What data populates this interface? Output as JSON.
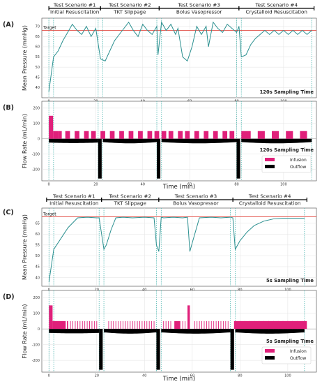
{
  "chart_data": [
    {
      "panel": "(A)",
      "type": "line",
      "scenarios": [
        {
          "title": "Test Scenario #1",
          "subtitle": "Initial Resuscitation",
          "start": 0,
          "end": 22
        },
        {
          "title": "Test Scenario #2",
          "subtitle": "TKT Slippage",
          "start": 22,
          "end": 47
        },
        {
          "title": "Test Scenario #3",
          "subtitle": "Bolus Vasopressor",
          "start": 47,
          "end": 81
        },
        {
          "title": "Test Scenario #4",
          "subtitle": "Crystalloid Resuscitation",
          "start": 81,
          "end": 113
        }
      ],
      "vlines": [
        0,
        2,
        21,
        23,
        46,
        48,
        80,
        82,
        112
      ],
      "xlim": [
        -3,
        114
      ],
      "ylim": [
        35,
        74
      ],
      "yticks": [
        40,
        45,
        50,
        55,
        60,
        65,
        70
      ],
      "xticks": [
        0,
        20,
        40,
        60,
        80,
        100
      ],
      "ylabel": "Mean Pressure (mmHg)",
      "target": {
        "label": "Target",
        "value": 68
      },
      "annotation": "120s Sampling Time",
      "series": [
        {
          "x": [
            0,
            2,
            4,
            6,
            8,
            10,
            12,
            14,
            16,
            18,
            20,
            22,
            24,
            26,
            28,
            30,
            32,
            34,
            36,
            38,
            40,
            42,
            44,
            46,
            46.5,
            48,
            50,
            52,
            54,
            55,
            57,
            59,
            61,
            63,
            65,
            67,
            68,
            70,
            72,
            74,
            76,
            78,
            80,
            81,
            82,
            84,
            86,
            88,
            90,
            92,
            94,
            96,
            98,
            100,
            102,
            104,
            106,
            108,
            110,
            112
          ],
          "y": [
            38,
            55,
            58,
            63,
            67,
            71,
            68,
            66,
            70,
            65,
            69,
            54,
            53,
            58,
            63,
            66,
            69,
            72,
            68,
            65,
            71,
            68,
            66,
            70,
            56,
            72,
            68,
            71,
            66,
            69,
            55,
            53,
            60,
            70,
            66,
            70,
            60,
            72,
            69,
            67,
            71,
            69,
            67,
            70,
            55,
            56,
            61,
            64,
            66,
            68,
            66,
            68,
            66,
            68,
            66,
            68,
            66,
            68,
            66,
            68
          ]
        }
      ]
    },
    {
      "panel": "(B)",
      "type": "bar",
      "vlines": [
        0,
        2,
        21,
        23,
        46,
        48,
        80,
        82,
        112
      ],
      "xlim": [
        -3,
        114
      ],
      "ylim": [
        -275,
        245
      ],
      "yticks": [
        -200,
        -100,
        0,
        100,
        200
      ],
      "xticks": [
        0,
        20,
        40,
        60,
        80,
        100
      ],
      "ylabel": "Flow Rate (mL/min)",
      "xlabel": "Time (min)",
      "annotation": "120s Sampling Time",
      "legend": [
        "Infusion",
        "Outflow"
      ],
      "infusion": [
        [
          0,
          1.8,
          150
        ],
        [
          1.8,
          4,
          50
        ],
        [
          4,
          5.5,
          50
        ],
        [
          7,
          9,
          50
        ],
        [
          11,
          13,
          50
        ],
        [
          15,
          17,
          50
        ],
        [
          18,
          20,
          50
        ],
        [
          22,
          24,
          50
        ],
        [
          26,
          28,
          50
        ],
        [
          30,
          32,
          50
        ],
        [
          34,
          36,
          50
        ],
        [
          38,
          40,
          50
        ],
        [
          42,
          44,
          50
        ],
        [
          45,
          47,
          50
        ],
        [
          48,
          50,
          50
        ],
        [
          51,
          53,
          50
        ],
        [
          55,
          57,
          50
        ],
        [
          58,
          60,
          50
        ],
        [
          62,
          64,
          50
        ],
        [
          66,
          68,
          50
        ],
        [
          70,
          72,
          50
        ],
        [
          74,
          76,
          50
        ],
        [
          77,
          79,
          50
        ],
        [
          82,
          86,
          50
        ],
        [
          89,
          92,
          50
        ],
        [
          95,
          98,
          50
        ],
        [
          101,
          104,
          50
        ],
        [
          107,
          110,
          50
        ]
      ],
      "outflow_segments": [
        {
          "start": 0,
          "end": 21,
          "base": 25,
          "peak": 28
        },
        {
          "start": 21,
          "end": 22.5,
          "base": 260,
          "peak": 260
        },
        {
          "start": 23,
          "end": 46,
          "base": 22,
          "peak": 30
        },
        {
          "start": 46,
          "end": 47.5,
          "base": 260,
          "peak": 260
        },
        {
          "start": 48,
          "end": 80,
          "base": 22,
          "peak": 30
        },
        {
          "start": 80,
          "end": 81.5,
          "base": 260,
          "peak": 260
        },
        {
          "start": 82,
          "end": 112,
          "base": 22,
          "peak": 30
        }
      ]
    },
    {
      "panel": "(C)",
      "type": "line",
      "scenarios": [
        {
          "title": "Test Scenario #1",
          "subtitle": "Initial Resuscitation",
          "start": -1,
          "end": 22
        },
        {
          "title": "Test Scenario #2",
          "subtitle": "TKT Slippage",
          "start": 22,
          "end": 46
        },
        {
          "title": "Test Scenario #3",
          "subtitle": "Bolus Vasopressor",
          "start": 46,
          "end": 77
        },
        {
          "title": "Test Scenario #4",
          "subtitle": "Crystalloid Resuscitation",
          "start": 77,
          "end": 108
        }
      ],
      "vlines": [
        0,
        2,
        21,
        23,
        45,
        47,
        76,
        78,
        107
      ],
      "xlim": [
        -3,
        112
      ],
      "ylim": [
        36,
        72
      ],
      "yticks": [
        40,
        45,
        50,
        55,
        60,
        65
      ],
      "xticks": [
        0,
        20,
        40,
        60,
        80,
        100
      ],
      "ylabel": "Mean Pressure (mmHg)",
      "target": {
        "label": "Target",
        "value": 68
      },
      "annotation": "5s Sampling Time",
      "series": [
        {
          "x": [
            0,
            2,
            5,
            8,
            12,
            16,
            20,
            21,
            23,
            24,
            26,
            28,
            31,
            35,
            40,
            44,
            45,
            46,
            47,
            48,
            52,
            56,
            58,
            59,
            60,
            63,
            68,
            72,
            76,
            77,
            78,
            80,
            83,
            86,
            90,
            94,
            98,
            102,
            105,
            107
          ],
          "y": [
            38,
            53,
            58,
            63,
            67.5,
            67.8,
            67.5,
            67.5,
            53,
            55,
            62,
            67.5,
            67.8,
            67.5,
            67.8,
            67.5,
            55,
            52,
            67.8,
            67.5,
            67.8,
            67.5,
            67.8,
            52,
            56,
            67.5,
            67.8,
            67.5,
            67.8,
            67.5,
            53,
            57,
            61,
            64,
            66,
            67,
            67.3,
            67.3,
            67.3,
            67.3
          ]
        }
      ]
    },
    {
      "panel": "(D)",
      "type": "bar",
      "vlines": [
        0,
        2,
        21,
        23,
        45,
        47,
        76,
        78,
        107
      ],
      "xlim": [
        -3,
        112
      ],
      "ylim": [
        -275,
        245
      ],
      "yticks": [
        -200,
        -100,
        0,
        100,
        200
      ],
      "xticks": [
        0,
        20,
        40,
        60,
        80,
        100
      ],
      "ylabel": "Flow Rate (mL/min)",
      "xlabel": "Time (min)",
      "annotation": "5s Sampling Time",
      "legend": [
        "Infusion",
        "Outflow"
      ],
      "infusion_blocks": [
        [
          0,
          1.5,
          150
        ],
        [
          1.5,
          7,
          50
        ],
        [
          7.5,
          8,
          50
        ],
        [
          52.5,
          55,
          50
        ],
        [
          58,
          59,
          150
        ],
        [
          77.5,
          108,
          50
        ]
      ],
      "infusion_spikes": {
        "x": [
          9,
          10,
          11,
          12,
          13,
          14,
          15,
          16,
          17,
          18,
          19,
          20,
          25,
          26,
          27,
          28,
          29,
          30,
          31,
          32,
          33,
          34,
          35,
          36,
          37,
          38,
          39,
          40,
          41,
          42,
          43,
          44,
          48,
          49,
          50,
          51,
          56,
          57,
          61,
          62,
          63,
          64,
          65,
          66,
          67,
          68,
          69,
          70,
          71,
          72,
          73,
          74,
          75,
          80,
          82,
          84,
          86,
          88,
          90,
          92,
          94,
          96,
          98,
          100,
          102,
          104,
          106
        ],
        "height": 50
      },
      "outflow_segments": [
        {
          "start": 0,
          "end": 21,
          "base": 25,
          "peak": 28
        },
        {
          "start": 21,
          "end": 22.5,
          "base": 260,
          "peak": 260
        },
        {
          "start": 23,
          "end": 45,
          "base": 22,
          "peak": 30
        },
        {
          "start": 45,
          "end": 46.5,
          "base": 260,
          "peak": 260
        },
        {
          "start": 47,
          "end": 76,
          "base": 22,
          "peak": 30
        },
        {
          "start": 76,
          "end": 77.5,
          "base": 260,
          "peak": 260
        },
        {
          "start": 78,
          "end": 107,
          "base": 22,
          "peak": 30
        }
      ]
    }
  ],
  "colors": {
    "line": "#2a8f8f",
    "target": "#e0483f",
    "infusion": "#e0207a",
    "outflow": "#000000",
    "vline": "#4fb6b0"
  }
}
